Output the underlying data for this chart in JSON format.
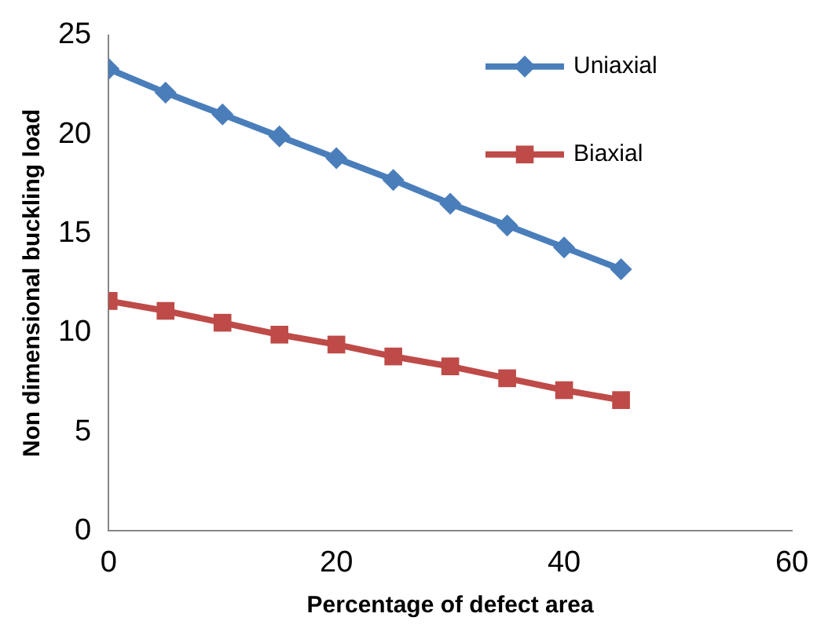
{
  "chart_data": {
    "type": "line",
    "xlabel": "Percentage of defect area",
    "ylabel": "Non dimensional buckling load",
    "x": [
      0,
      5,
      10,
      15,
      20,
      25,
      30,
      35,
      40,
      45
    ],
    "series": [
      {
        "name": "Uniaxial",
        "color": "#4a7ebb",
        "marker": "diamond",
        "values": [
          23.3,
          22.1,
          21.0,
          19.9,
          18.8,
          17.7,
          16.5,
          15.4,
          14.3,
          13.2
        ]
      },
      {
        "name": "Biaxial",
        "color": "#be4b48",
        "marker": "square",
        "values": [
          11.6,
          11.1,
          10.5,
          9.9,
          9.4,
          8.8,
          8.3,
          7.7,
          7.1,
          6.6
        ]
      }
    ],
    "xlim": [
      0,
      60
    ],
    "xticks": [
      0,
      20,
      40,
      60
    ],
    "ylim": [
      0,
      25
    ],
    "yticks": [
      0,
      5,
      10,
      15,
      20,
      25
    ],
    "grid": false,
    "legend": "top right",
    "line_style": "solid"
  }
}
